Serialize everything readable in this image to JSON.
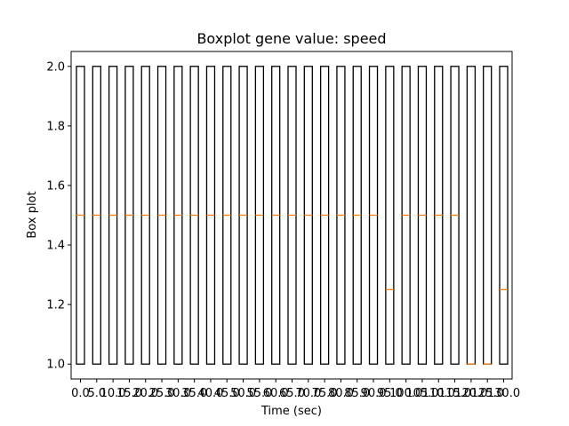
{
  "chart_data": {
    "type": "boxplot",
    "title": "Boxplot gene value: speed",
    "xlabel": "Time (sec)",
    "ylabel": "Box plot",
    "ylim": [
      0.95,
      2.05
    ],
    "yticks": [
      "1.0",
      "1.2",
      "1.4",
      "1.6",
      "1.8",
      "2.0"
    ],
    "ytick_values": [
      1.0,
      1.2,
      1.4,
      1.6,
      1.8,
      2.0
    ],
    "categories": [
      "0.0",
      "5.0",
      "10.0",
      "15.0",
      "20.0",
      "25.0",
      "30.0",
      "35.0",
      "40.0",
      "45.0",
      "50.0",
      "55.0",
      "60.0",
      "65.0",
      "70.0",
      "75.0",
      "80.0",
      "85.0",
      "90.0",
      "95.0",
      "100.0",
      "105.0",
      "110.0",
      "115.0",
      "120.0",
      "125.0",
      "130.0"
    ],
    "boxes": [
      {
        "q1": 1.0,
        "median": 1.5,
        "q3": 2.0
      },
      {
        "q1": 1.0,
        "median": 1.5,
        "q3": 2.0
      },
      {
        "q1": 1.0,
        "median": 1.5,
        "q3": 2.0
      },
      {
        "q1": 1.0,
        "median": 1.5,
        "q3": 2.0
      },
      {
        "q1": 1.0,
        "median": 1.5,
        "q3": 2.0
      },
      {
        "q1": 1.0,
        "median": 1.5,
        "q3": 2.0
      },
      {
        "q1": 1.0,
        "median": 1.5,
        "q3": 2.0
      },
      {
        "q1": 1.0,
        "median": 1.5,
        "q3": 2.0
      },
      {
        "q1": 1.0,
        "median": 1.5,
        "q3": 2.0
      },
      {
        "q1": 1.0,
        "median": 1.5,
        "q3": 2.0
      },
      {
        "q1": 1.0,
        "median": 1.5,
        "q3": 2.0
      },
      {
        "q1": 1.0,
        "median": 1.5,
        "q3": 2.0
      },
      {
        "q1": 1.0,
        "median": 1.5,
        "q3": 2.0
      },
      {
        "q1": 1.0,
        "median": 1.5,
        "q3": 2.0
      },
      {
        "q1": 1.0,
        "median": 1.5,
        "q3": 2.0
      },
      {
        "q1": 1.0,
        "median": 1.5,
        "q3": 2.0
      },
      {
        "q1": 1.0,
        "median": 1.5,
        "q3": 2.0
      },
      {
        "q1": 1.0,
        "median": 1.5,
        "q3": 2.0
      },
      {
        "q1": 1.0,
        "median": 1.5,
        "q3": 2.0
      },
      {
        "q1": 1.0,
        "median": 1.25,
        "q3": 2.0
      },
      {
        "q1": 1.0,
        "median": 1.5,
        "q3": 2.0
      },
      {
        "q1": 1.0,
        "median": 1.5,
        "q3": 2.0
      },
      {
        "q1": 1.0,
        "median": 1.5,
        "q3": 2.0
      },
      {
        "q1": 1.0,
        "median": 1.5,
        "q3": 2.0
      },
      {
        "q1": 1.0,
        "median": 1.0,
        "q3": 2.0
      },
      {
        "q1": 1.0,
        "median": 1.0,
        "q3": 2.0
      },
      {
        "q1": 1.0,
        "median": 1.25,
        "q3": 2.0
      }
    ],
    "colors": {
      "box": "#000000",
      "median": "#ff7f0e"
    },
    "grid": false
  }
}
